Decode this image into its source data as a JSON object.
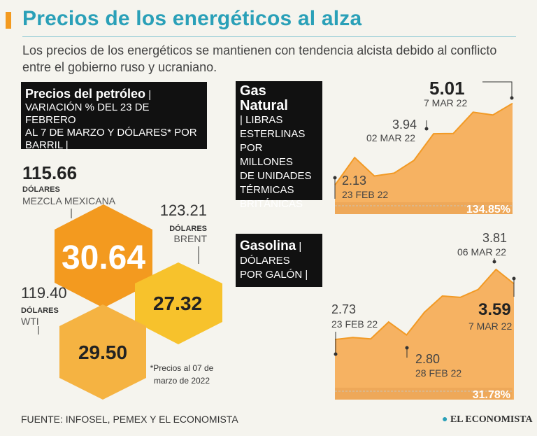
{
  "header": {
    "title": "Precios de los energéticos al alza",
    "subtitle": "Los precios de los energéticos se mantienen con tendencia alcista debido al conflicto entre el gobierno ruso y ucraniano."
  },
  "oil_box": {
    "title": "Precios del petróleo",
    "lines": [
      "VARIACIÓN % DEL 23 DE FEBRERO",
      "AL 7 DE MARZO Y DÓLARES* POR",
      "BARRIL |"
    ]
  },
  "gas_box": {
    "title_line1": "Gas",
    "title_line2": "Natural",
    "lines": [
      "| LIBRAS",
      "ESTERLINAS",
      "POR MILLONES",
      "DE UNIDADES",
      "TÉRMICAS",
      "BRITÁNICAS"
    ]
  },
  "gasolina_box": {
    "title": "Gasolina",
    "lines": [
      "DÓLARES",
      "POR GALÓN |"
    ]
  },
  "chart_data": [
    {
      "type": "hexagon-values",
      "title": "Precios del petróleo",
      "items": [
        {
          "name": "MEZCLA MEXICANA",
          "price": "115.66",
          "unit": "DÓLARES",
          "variation": "30.64"
        },
        {
          "name": "BRENT",
          "price": "123.21",
          "unit": "DÓLARES",
          "variation": "27.32"
        },
        {
          "name": "WTI",
          "price": "119.40",
          "unit": "DÓLARES",
          "variation": "29.50"
        }
      ],
      "footnote": [
        "*Precios al 07 de",
        "marzo de 2022"
      ]
    },
    {
      "type": "area",
      "title": "Gas Natural",
      "values": [
        2.13,
        3.1,
        2.45,
        2.55,
        3.0,
        3.94,
        3.95,
        4.7,
        4.6,
        5.01
      ],
      "ylim": [
        1.5,
        5.2
      ],
      "annotations": [
        {
          "value": "2.13",
          "date": "23 FEB 22"
        },
        {
          "value": "3.94",
          "date": "02 MAR 22"
        },
        {
          "value": "5.01",
          "date": "7 MAR 22"
        }
      ],
      "variation": "134.85%"
    },
    {
      "type": "area",
      "title": "Gasolina",
      "values": [
        2.73,
        2.76,
        2.74,
        3.0,
        2.8,
        3.15,
        3.4,
        3.38,
        3.5,
        3.81,
        3.59
      ],
      "ylim": [
        2.3,
        3.95
      ],
      "annotations": [
        {
          "value": "2.73",
          "date": "23 FEB 22"
        },
        {
          "value": "2.80",
          "date": "28 FEB 22"
        },
        {
          "value": "3.81",
          "date": "06 MAR 22"
        },
        {
          "value": "3.59",
          "date": "7 MAR 22"
        }
      ],
      "variation": "31.78%"
    }
  ],
  "footer": {
    "source": "FUENTE: INFOSEL, PEMEX Y EL ECONOMISTA",
    "logo": "EL ECONOMISTA"
  },
  "colors": {
    "accent": "#f39a1f",
    "title": "#2aa0b8",
    "area": "#f6b262",
    "area_line": "#f29a25",
    "hex_dark": "#f39a1f",
    "hex_light": "#f5b342",
    "hex_yellow": "#f7c22c"
  }
}
